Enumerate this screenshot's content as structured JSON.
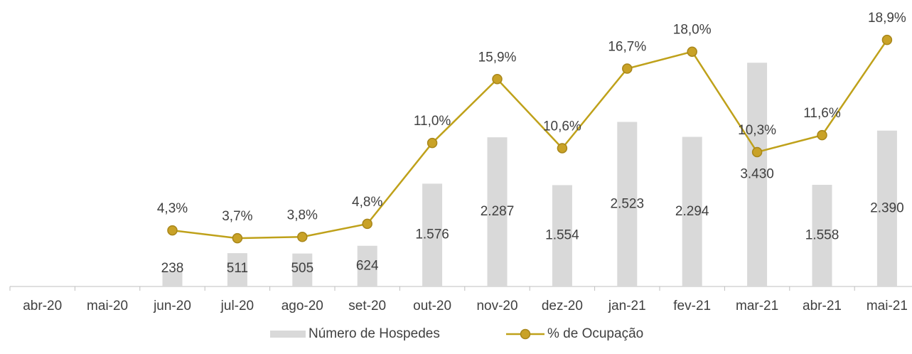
{
  "chart_data": {
    "type": "bar-line",
    "categories": [
      "abr-20",
      "mai-20",
      "jun-20",
      "jul-20",
      "ago-20",
      "set-20",
      "out-20",
      "nov-20",
      "dez-20",
      "jan-21",
      "fev-21",
      "mar-21",
      "abr-21",
      "mai-21"
    ],
    "series": [
      {
        "name": "Número de Hospedes",
        "type": "bar",
        "color": "#d9d9d9",
        "values": [
          null,
          null,
          238,
          511,
          505,
          624,
          1576,
          2287,
          1554,
          2523,
          2294,
          3430,
          1558,
          2390
        ],
        "value_labels": [
          null,
          null,
          "238",
          "511",
          "505",
          "624",
          "1.576",
          "2.287",
          "1.554",
          "2.523",
          "2.294",
          "3.430",
          "1.558",
          "2.390"
        ]
      },
      {
        "name": "% de Ocupação",
        "type": "line",
        "axis": "y2",
        "color": "#bfa11a",
        "values": [
          null,
          null,
          4.3,
          3.7,
          3.8,
          4.8,
          11.0,
          15.9,
          10.6,
          16.7,
          18.0,
          10.3,
          11.6,
          18.9
        ],
        "value_labels": [
          null,
          null,
          "4,3%",
          "3,7%",
          "3,8%",
          "4,8%",
          "11,0%",
          "15,9%",
          "10,6%",
          "16,7%",
          "18,0%",
          "10,3%",
          "11,6%",
          "18,9%"
        ]
      }
    ],
    "ylim": [
      0,
      4000
    ],
    "y2lim": [
      0,
      20
    ],
    "legend": "bottom"
  }
}
